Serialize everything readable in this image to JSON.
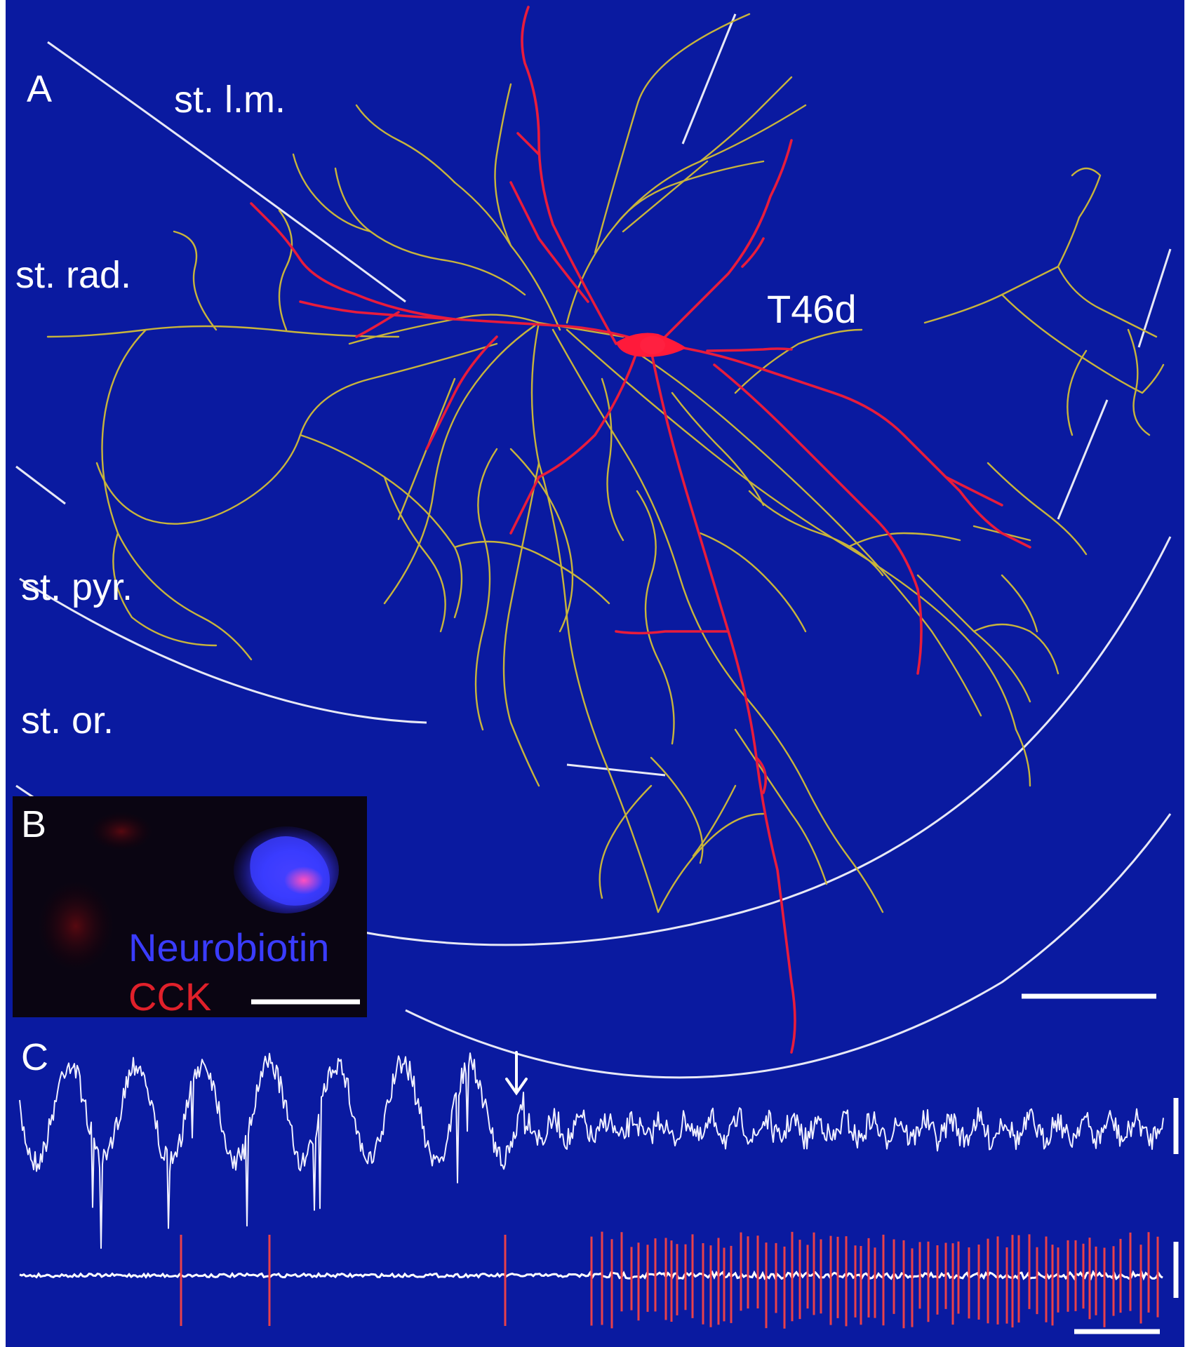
{
  "figure": {
    "panels": {
      "A": {
        "letter": "A",
        "layers": [
          "st. l.m.",
          "st. rad.",
          "st. pyr.",
          "st. or."
        ],
        "cell_name": "T46d"
      },
      "B": {
        "letter": "B",
        "stain_1": "Neurobiotin",
        "stain_2": "CCK"
      },
      "C": {
        "letter": "C"
      }
    },
    "colors": {
      "background": "#0a1aa0",
      "dendrite": "#e81c3c",
      "axon": "#c8b43c",
      "boundary": "#ffffff",
      "neurobiotin": "#3a3cff",
      "cck": "#e0202a",
      "spikes": "#e8404a"
    }
  }
}
